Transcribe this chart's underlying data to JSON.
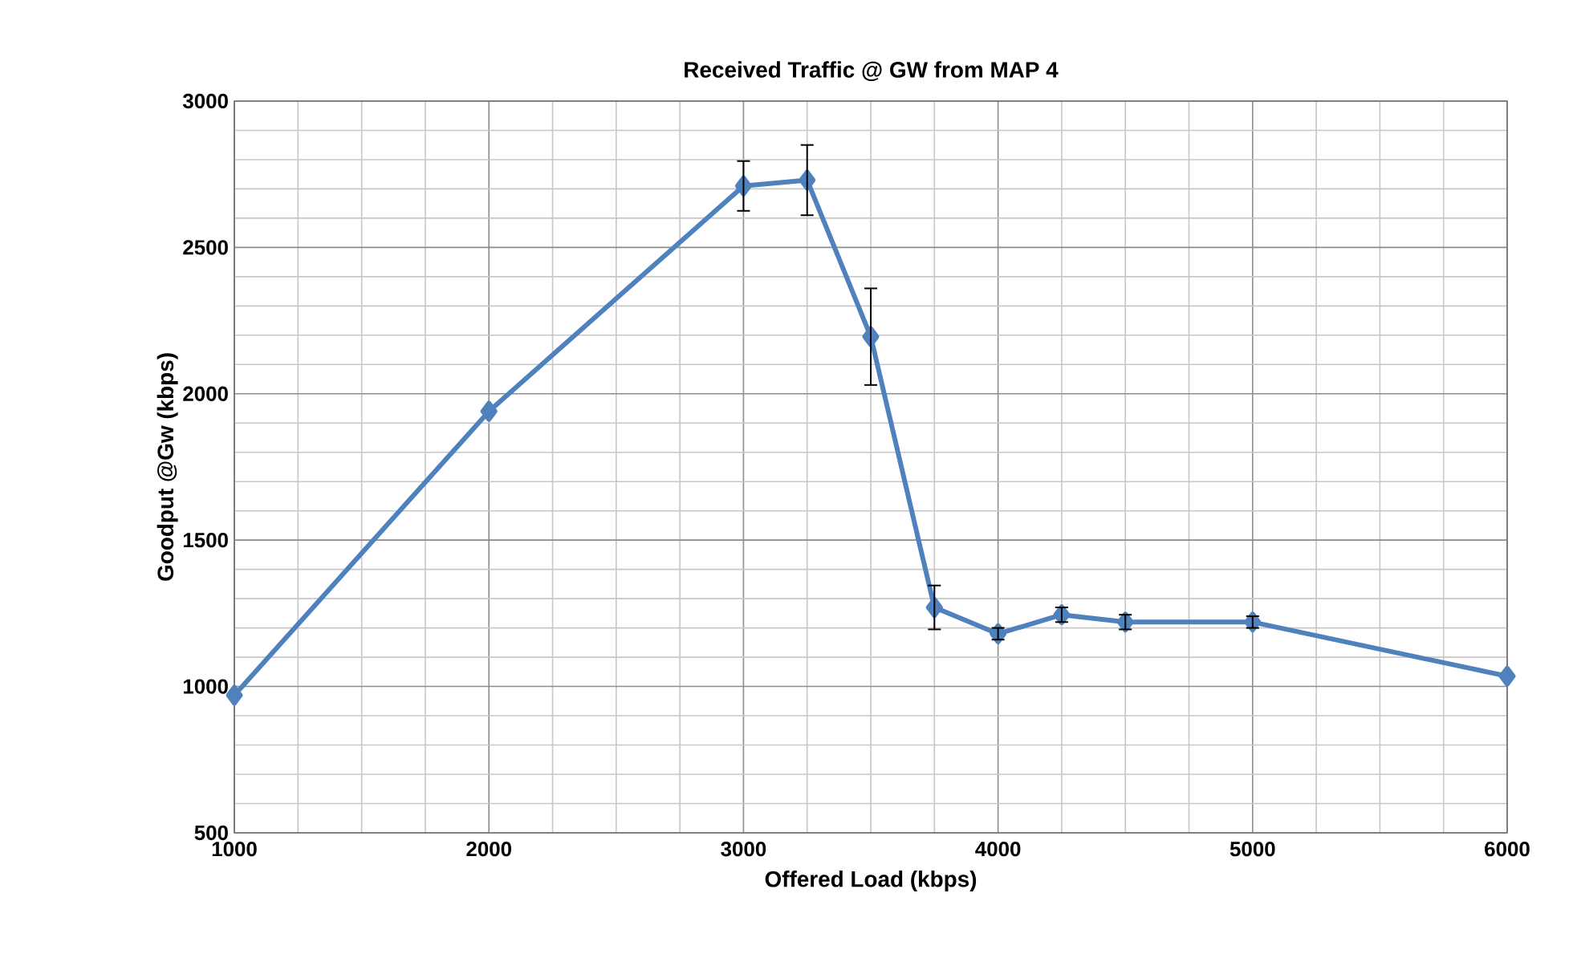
{
  "chart_data": {
    "type": "line",
    "title": "Received Traffic @ GW from MAP 4",
    "xlabel": "Offered Load (kbps)",
    "ylabel": "Goodput @Gw (kbps)",
    "x": [
      1000,
      2000,
      3000,
      3250,
      3500,
      3750,
      4000,
      4250,
      4500,
      5000,
      6000
    ],
    "series": [
      {
        "color": "#4f81bd",
        "values": [
          970,
          1940,
          2710,
          2730,
          2195,
          1270,
          1180,
          1245,
          1220,
          1220,
          1035
        ],
        "errors": [
          null,
          null,
          85,
          120,
          165,
          75,
          20,
          25,
          25,
          20,
          null
        ]
      }
    ],
    "xlim": [
      1000,
      6000
    ],
    "ylim": [
      500,
      3000
    ],
    "xticks": [
      1000,
      2000,
      3000,
      4000,
      5000,
      6000
    ],
    "yticks": [
      500,
      1000,
      1500,
      2000,
      2500,
      3000
    ],
    "grid": true,
    "marker": "diamond",
    "line_style": "solid"
  }
}
